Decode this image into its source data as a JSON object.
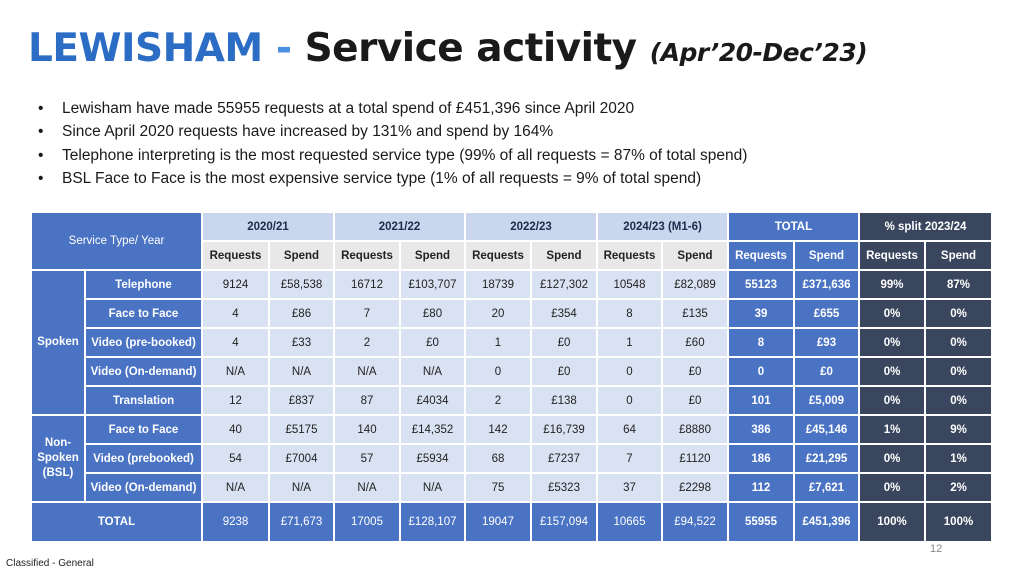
{
  "title": {
    "part1": "LEWISHAM",
    "dash": " - ",
    "part2": "Service activity",
    "part3": "(Apr’20-Dec’23)"
  },
  "bullets": [
    "Lewisham have made 55955 requests at a total spend of £451,396 since April 2020",
    "Since April 2020 requests have increased by 131% and spend by 164%",
    "Telephone interpreting is the most requested service type (99% of all requests = 87% of total spend)",
    "BSL Face to Face is the most expensive service type (1% of all requests = 9% of total spend)"
  ],
  "table": {
    "header_label": "Service Type/ Year",
    "years": [
      "2020/21",
      "2021/22",
      "2022/23",
      "2024/23 (M1-6)"
    ],
    "total_label": "TOTAL",
    "pct_label": "% split 2023/24",
    "col_requests": "Requests",
    "col_spend": "Spend",
    "groups": [
      {
        "name": "Spoken"
      },
      {
        "name": "Non-Spoken (BSL)"
      }
    ],
    "rows": [
      {
        "service": "Telephone",
        "values": [
          "9124",
          "£58,538",
          "16712",
          "£103,707",
          "18739",
          "£127,302",
          "10548",
          "£82,089"
        ],
        "total": [
          "55123",
          "£371,636"
        ],
        "pct": [
          "99%",
          "87%"
        ]
      },
      {
        "service": "Face to Face",
        "values": [
          "4",
          "£86",
          "7",
          "£80",
          "20",
          "£354",
          "8",
          "£135"
        ],
        "total": [
          "39",
          "£655"
        ],
        "pct": [
          "0%",
          "0%"
        ]
      },
      {
        "service": "Video (pre-booked)",
        "values": [
          "4",
          "£33",
          "2",
          "£0",
          "1",
          "£0",
          "1",
          "£60"
        ],
        "total": [
          "8",
          "£93"
        ],
        "pct": [
          "0%",
          "0%"
        ]
      },
      {
        "service": "Video (On-demand)",
        "values": [
          "N/A",
          "N/A",
          "N/A",
          "N/A",
          "0",
          "£0",
          "0",
          "£0"
        ],
        "total": [
          "0",
          "£0"
        ],
        "pct": [
          "0%",
          "0%"
        ]
      },
      {
        "service": "Translation",
        "values": [
          "12",
          "£837",
          "87",
          "£4034",
          "2",
          "£138",
          "0",
          "£0"
        ],
        "total": [
          "101",
          "£5,009"
        ],
        "pct": [
          "0%",
          "0%"
        ]
      },
      {
        "service": "Face to Face",
        "values": [
          "40",
          "£5175",
          "140",
          "£14,352",
          "142",
          "£16,739",
          "64",
          "£8880"
        ],
        "total": [
          "386",
          "£45,146"
        ],
        "pct": [
          "1%",
          "9%"
        ]
      },
      {
        "service": "Video (prebooked)",
        "values": [
          "54",
          "£7004",
          "57",
          "£5934",
          "68",
          "£7237",
          "7",
          "£1120"
        ],
        "total": [
          "186",
          "£21,295"
        ],
        "pct": [
          "0%",
          "1%"
        ]
      },
      {
        "service": "Video (On-demand)",
        "values": [
          "N/A",
          "N/A",
          "N/A",
          "N/A",
          "75",
          "£5323",
          "37",
          "£2298"
        ],
        "total": [
          "112",
          "£7,621"
        ],
        "pct": [
          "0%",
          "2%"
        ]
      }
    ],
    "totals": {
      "label": "TOTAL",
      "values": [
        "9238",
        "£71,673",
        "17005",
        "£128,107",
        "19047",
        "£157,094",
        "10665",
        "£94,522"
      ],
      "total": [
        "55955",
        "£451,396"
      ],
      "pct": [
        "100%",
        "100%"
      ]
    }
  },
  "page_number": "12",
  "footer": "Classified - General"
}
